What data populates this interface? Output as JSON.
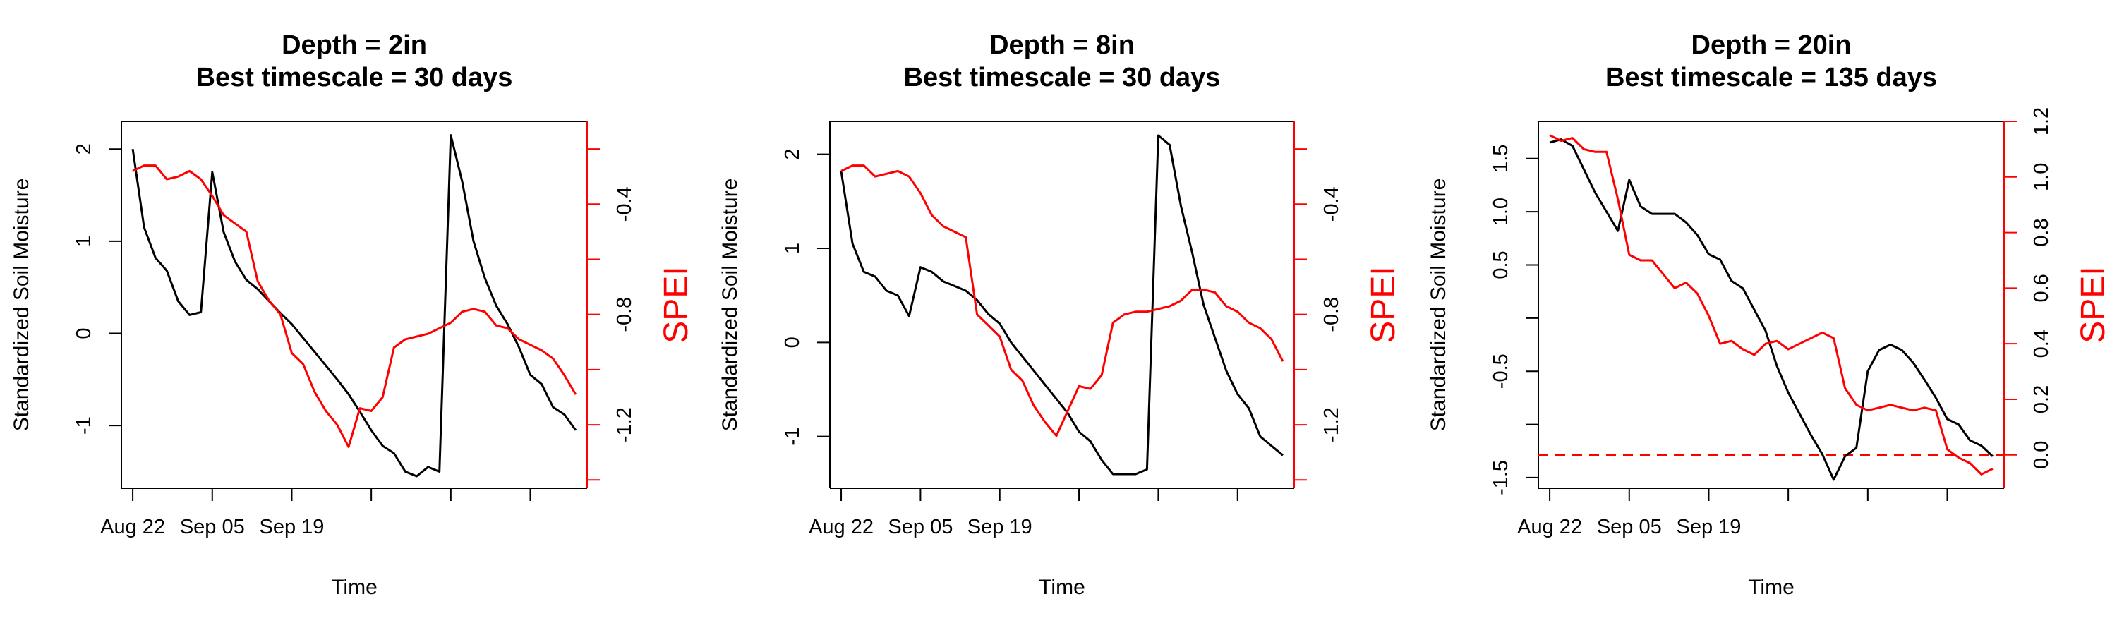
{
  "colors": {
    "soil": "#000000",
    "spei": "#ff0000"
  },
  "chart_data": [
    {
      "type": "line",
      "title": "Depth = 2in",
      "subtitle": "Best timescale = 30 days",
      "xlabel": "Time",
      "ylabel": "Standardized Soil Moisture",
      "ylabel_right": "SPEI",
      "x_ticks": [
        "Aug 22",
        "Sep 05",
        "Sep 19"
      ],
      "y_ticks": [
        "-1",
        "0",
        "1",
        "2"
      ],
      "y_ticks_right": [
        "-1.2",
        "-0.8",
        "-0.4"
      ],
      "ylim": [
        -1.68,
        2.3
      ],
      "ylim_right": [
        -1.43,
        -0.1
      ],
      "right_tick_values": [
        -1.4,
        -1.2,
        -1.0,
        -0.8,
        -0.6,
        -0.4,
        -0.2
      ],
      "xlim": [
        0,
        41
      ],
      "x_tick_values": [
        1,
        8,
        15,
        22,
        29,
        36
      ],
      "series": [
        {
          "axis": "left",
          "x": [
            1,
            2,
            3,
            4,
            5,
            6,
            7,
            8,
            9,
            10,
            11,
            12,
            13,
            14,
            15,
            16,
            17,
            18,
            19,
            20,
            21,
            22,
            23,
            24,
            25,
            26,
            27,
            28,
            29,
            30,
            31,
            32,
            33,
            34,
            35,
            36,
            37,
            38,
            39,
            40
          ],
          "values": [
            2.0,
            1.15,
            0.82,
            0.68,
            0.35,
            0.2,
            0.23,
            1.75,
            1.1,
            0.78,
            0.58,
            0.48,
            0.35,
            0.22,
            0.1,
            -0.05,
            -0.2,
            -0.35,
            -0.5,
            -0.66,
            -0.85,
            -1.05,
            -1.22,
            -1.3,
            -1.5,
            -1.55,
            -1.45,
            -1.5,
            2.15,
            1.65,
            1.0,
            0.6,
            0.3,
            0.1,
            -0.15,
            -0.45,
            -0.55,
            -0.8,
            -0.88,
            -1.05
          ]
        },
        {
          "axis": "right",
          "x": [
            1,
            2,
            3,
            4,
            5,
            6,
            7,
            8,
            9,
            10,
            11,
            12,
            13,
            14,
            15,
            16,
            17,
            18,
            19,
            20,
            21,
            22,
            23,
            24,
            25,
            26,
            27,
            28,
            29,
            30,
            31,
            32,
            33,
            34,
            35,
            36,
            37,
            38,
            39,
            40
          ],
          "values": [
            -0.28,
            -0.26,
            -0.26,
            -0.31,
            -0.3,
            -0.28,
            -0.31,
            -0.37,
            -0.44,
            -0.47,
            -0.5,
            -0.68,
            -0.75,
            -0.8,
            -0.94,
            -0.98,
            -1.08,
            -1.15,
            -1.2,
            -1.28,
            -1.14,
            -1.15,
            -1.1,
            -0.92,
            -0.89,
            -0.88,
            -0.87,
            -0.85,
            -0.83,
            -0.79,
            -0.78,
            -0.79,
            -0.84,
            -0.85,
            -0.89,
            -0.91,
            -0.93,
            -0.96,
            -1.02,
            -1.09
          ]
        }
      ]
    },
    {
      "type": "line",
      "title": "Depth = 8in",
      "subtitle": "Best timescale = 30 days",
      "xlabel": "Time",
      "ylabel": "Standardized Soil Moisture",
      "ylabel_right": "SPEI",
      "x_ticks": [
        "Aug 22",
        "Sep 05",
        "Sep 19"
      ],
      "y_ticks": [
        "-1",
        "0",
        "1",
        "2"
      ],
      "y_ticks_right": [
        "-1.2",
        "-0.8",
        "-0.4"
      ],
      "ylim": [
        -1.55,
        2.35
      ],
      "ylim_right": [
        -1.43,
        -0.1
      ],
      "right_tick_values": [
        -1.4,
        -1.2,
        -1.0,
        -0.8,
        -0.6,
        -0.4,
        -0.2
      ],
      "xlim": [
        0,
        41
      ],
      "x_tick_values": [
        1,
        8,
        15,
        22,
        29,
        36
      ],
      "series": [
        {
          "axis": "left",
          "x": [
            1,
            2,
            3,
            4,
            5,
            6,
            7,
            8,
            9,
            10,
            11,
            12,
            13,
            14,
            15,
            16,
            17,
            18,
            19,
            20,
            21,
            22,
            23,
            24,
            25,
            26,
            27,
            28,
            29,
            30,
            31,
            32,
            33,
            34,
            35,
            36,
            37,
            38,
            39,
            40
          ],
          "values": [
            1.82,
            1.05,
            0.75,
            0.7,
            0.55,
            0.5,
            0.28,
            0.8,
            0.75,
            0.65,
            0.6,
            0.55,
            0.45,
            0.3,
            0.2,
            0.0,
            -0.15,
            -0.3,
            -0.45,
            -0.6,
            -0.75,
            -0.95,
            -1.05,
            -1.25,
            -1.4,
            -1.4,
            -1.4,
            -1.35,
            2.2,
            2.1,
            1.45,
            0.95,
            0.4,
            0.05,
            -0.3,
            -0.55,
            -0.7,
            -1.0,
            -1.1,
            -1.2
          ]
        },
        {
          "axis": "right",
          "x": [
            1,
            2,
            3,
            4,
            5,
            6,
            7,
            8,
            9,
            10,
            11,
            12,
            13,
            14,
            15,
            16,
            17,
            18,
            19,
            20,
            21,
            22,
            23,
            24,
            25,
            26,
            27,
            28,
            29,
            30,
            31,
            32,
            33,
            34,
            35,
            36,
            37,
            38,
            39,
            40
          ],
          "values": [
            -0.28,
            -0.26,
            -0.26,
            -0.3,
            -0.29,
            -0.28,
            -0.3,
            -0.36,
            -0.44,
            -0.48,
            -0.5,
            -0.52,
            -0.8,
            -0.84,
            -0.88,
            -1.0,
            -1.04,
            -1.13,
            -1.19,
            -1.24,
            -1.15,
            -1.06,
            -1.07,
            -1.02,
            -0.83,
            -0.8,
            -0.79,
            -0.79,
            -0.78,
            -0.77,
            -0.75,
            -0.71,
            -0.71,
            -0.72,
            -0.77,
            -0.79,
            -0.83,
            -0.85,
            -0.89,
            -0.97
          ]
        }
      ]
    },
    {
      "type": "line",
      "title": "Depth = 20in",
      "subtitle": "Best timescale = 135 days",
      "xlabel": "Time",
      "ylabel": "Standardized Soil Moisture",
      "ylabel_right": "SPEI",
      "x_ticks": [
        "Aug 22",
        "Sep 05",
        "Sep 19"
      ],
      "y_ticks": [
        "-1.5",
        "-0.5",
        "0.5",
        "1.0",
        "1.5"
      ],
      "y_ticks_right": [
        "0.0",
        "0.2",
        "0.4",
        "0.6",
        "0.8",
        "1.0",
        "1.2"
      ],
      "ylim": [
        -1.6,
        1.85
      ],
      "ylim_right": [
        -0.12,
        1.2
      ],
      "right_tick_values": [
        0.0,
        0.2,
        0.4,
        0.6,
        0.8,
        1.0,
        1.2
      ],
      "left_tick_values": [
        -1.5,
        -1.0,
        -0.5,
        0.0,
        0.5,
        1.0,
        1.5
      ],
      "left_tick_labels": [
        "-1.5",
        "",
        "-0.5",
        "",
        "0.5",
        "1.0",
        "1.5"
      ],
      "hline_right": 0.0,
      "xlim": [
        0,
        41
      ],
      "x_tick_values": [
        1,
        8,
        15,
        22,
        29,
        36
      ],
      "series": [
        {
          "axis": "left",
          "x": [
            1,
            2,
            3,
            4,
            5,
            6,
            7,
            8,
            9,
            10,
            11,
            12,
            13,
            14,
            15,
            16,
            17,
            18,
            19,
            20,
            21,
            22,
            23,
            24,
            25,
            26,
            27,
            28,
            29,
            30,
            31,
            32,
            33,
            34,
            35,
            36,
            37,
            38,
            39,
            40
          ],
          "values": [
            1.65,
            1.68,
            1.62,
            1.4,
            1.18,
            1.0,
            0.82,
            1.3,
            1.05,
            0.98,
            0.98,
            0.98,
            0.9,
            0.78,
            0.6,
            0.55,
            0.35,
            0.28,
            0.08,
            -0.12,
            -0.45,
            -0.7,
            -0.9,
            -1.1,
            -1.28,
            -1.52,
            -1.3,
            -1.22,
            -0.5,
            -0.3,
            -0.25,
            -0.3,
            -0.42,
            -0.58,
            -0.75,
            -0.95,
            -1.0,
            -1.15,
            -1.2,
            -1.3
          ]
        },
        {
          "axis": "right",
          "x": [
            1,
            2,
            3,
            4,
            5,
            6,
            7,
            8,
            9,
            10,
            11,
            12,
            13,
            14,
            15,
            16,
            17,
            18,
            19,
            20,
            21,
            22,
            23,
            24,
            25,
            26,
            27,
            28,
            29,
            30,
            31,
            32,
            33,
            34,
            35,
            36,
            37,
            38,
            39,
            40
          ],
          "values": [
            1.15,
            1.13,
            1.14,
            1.1,
            1.09,
            1.09,
            0.92,
            0.72,
            0.7,
            0.7,
            0.65,
            0.6,
            0.62,
            0.58,
            0.5,
            0.4,
            0.41,
            0.38,
            0.36,
            0.4,
            0.41,
            0.38,
            0.4,
            0.42,
            0.44,
            0.42,
            0.24,
            0.18,
            0.16,
            0.17,
            0.18,
            0.17,
            0.16,
            0.17,
            0.16,
            0.02,
            -0.01,
            -0.03,
            -0.07,
            -0.05
          ]
        }
      ]
    }
  ]
}
